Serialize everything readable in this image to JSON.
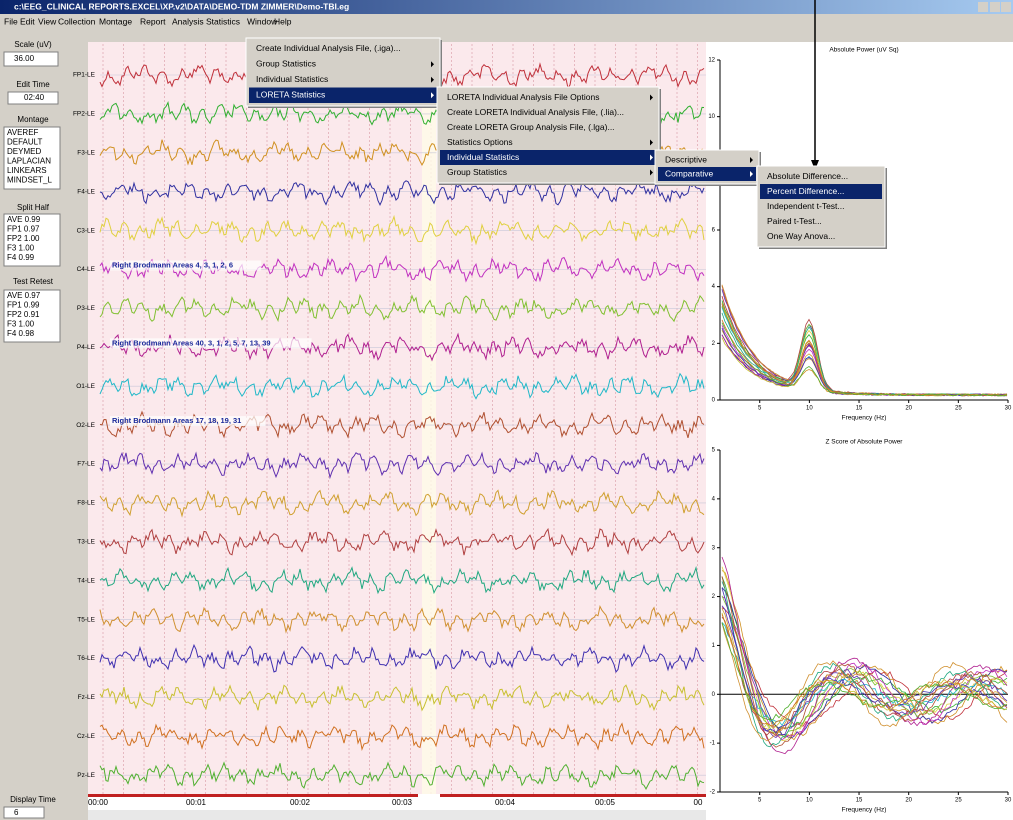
{
  "title_bar": "c:\\EEG_CLINICAL REPORTS.EXCEL\\XP.v2\\DATA\\DEMO-TDM ZIMMER\\Demo-TBI.eg",
  "menu": [
    "File",
    "Edit",
    "View",
    "Collection",
    "Montage",
    "Report",
    "Analysis",
    "Statistics",
    "Window",
    "Help"
  ],
  "left_panel": {
    "scale": {
      "label": "Scale (uV)",
      "value": "36.00"
    },
    "edit_time": {
      "label": "Edit Time",
      "value": "02:40"
    },
    "montage": {
      "label": "Montage",
      "items": [
        "AVEREF",
        "DEFAULT",
        "DEYMED",
        "LAPLACIAN",
        "LINKEARS",
        "MINDSET_L"
      ]
    },
    "split_half": {
      "label": "Split Half",
      "items": [
        "AVE  0.99",
        "FP1  0.97",
        "FP2  1.00",
        "F3  1.00",
        "F4  0.99"
      ]
    },
    "test_retest": {
      "label": "Test Retest",
      "items": [
        "AVE  0.97",
        "FP1  0.99",
        "FP2  0.91",
        "F3  1.00",
        "F4  0.98"
      ]
    },
    "display_time": {
      "label": "Display Time",
      "value": "6"
    }
  },
  "channels": [
    {
      "label": "FP1-LE",
      "color": "#c0303a"
    },
    {
      "label": "FP2-LE",
      "color": "#30b030"
    },
    {
      "label": "F3-LE",
      "color": "#d09020"
    },
    {
      "label": "F4-LE",
      "color": "#3030a0"
    },
    {
      "label": "C3-LE",
      "color": "#e0d040"
    },
    {
      "label": "C4-LE",
      "color": "#c030c0"
    },
    {
      "label": "P3-LE",
      "color": "#80c030"
    },
    {
      "label": "P4-LE",
      "color": "#b02090"
    },
    {
      "label": "O1-LE",
      "color": "#20b8c8"
    },
    {
      "label": "O2-LE",
      "color": "#b05030"
    },
    {
      "label": "F7-LE",
      "color": "#6030b0"
    },
    {
      "label": "F8-LE",
      "color": "#d0a030"
    },
    {
      "label": "T3-LE",
      "color": "#b04040"
    },
    {
      "label": "T4-LE",
      "color": "#20a880"
    },
    {
      "label": "T5-LE",
      "color": "#d09030"
    },
    {
      "label": "T6-LE",
      "color": "#4030b0"
    },
    {
      "label": "Fz-LE",
      "color": "#c8c030"
    },
    {
      "label": "Cz-LE",
      "color": "#d07020"
    },
    {
      "label": "Pz-LE",
      "color": "#50b030"
    }
  ],
  "annotations": [
    {
      "text": "Right Brodmann Areas   4, 3, 1, 2, 6",
      "channel": 5
    },
    {
      "text": "Right Brodmann Areas   40, 3, 1, 2, 5, 7, 13, 39",
      "channel": 7
    },
    {
      "text": "Right Brodmann Areas   17, 18, 19, 31",
      "channel": 9
    }
  ],
  "time_labels": [
    "00:00",
    "00:01",
    "00:02",
    "00:03",
    "00:04",
    "00:05",
    "00"
  ],
  "menus": {
    "statistics": {
      "items": [
        "Create Individual Analysis File, (.iga)...",
        "Group Statistics",
        "Individual Statistics",
        "LORETA Statistics"
      ],
      "highlight": 3
    },
    "loreta": {
      "items": [
        "LORETA Individual Analysis File Options",
        "Create LORETA Individual Analysis File, (.lia)...",
        "Create LORETA Group Analysis File, (.lga)...",
        "Statistics Options",
        "Individual Statistics",
        "Group Statistics"
      ],
      "highlight": 4
    },
    "individual": {
      "items": [
        "Descriptive",
        "Comparative"
      ],
      "highlight": 1
    },
    "comparative": {
      "items": [
        "Absolute Difference...",
        "Percent Difference...",
        "Independent t-Test...",
        "Paired t-Test...",
        "One Way Anova..."
      ],
      "highlight": 1
    }
  },
  "spectra": [
    {
      "title": "Absolute Power (uV Sq)",
      "xlabel": "Frequency (Hz)",
      "xlim": [
        1,
        30
      ],
      "xticks": [
        5,
        10,
        15,
        20,
        25,
        30
      ],
      "ylim": [
        0,
        12
      ],
      "yticks": [
        0,
        2,
        4,
        6,
        8,
        10,
        12
      ]
    },
    {
      "title": "Z Score of Absolute Power",
      "xlabel": "Frequency (Hz)",
      "xlim": [
        1,
        30
      ],
      "xticks": [
        5,
        10,
        15,
        20,
        25,
        30
      ],
      "ylim": [
        -2,
        5
      ],
      "yticks": [
        -2,
        -1,
        0,
        1,
        2,
        3,
        4,
        5
      ]
    }
  ]
}
